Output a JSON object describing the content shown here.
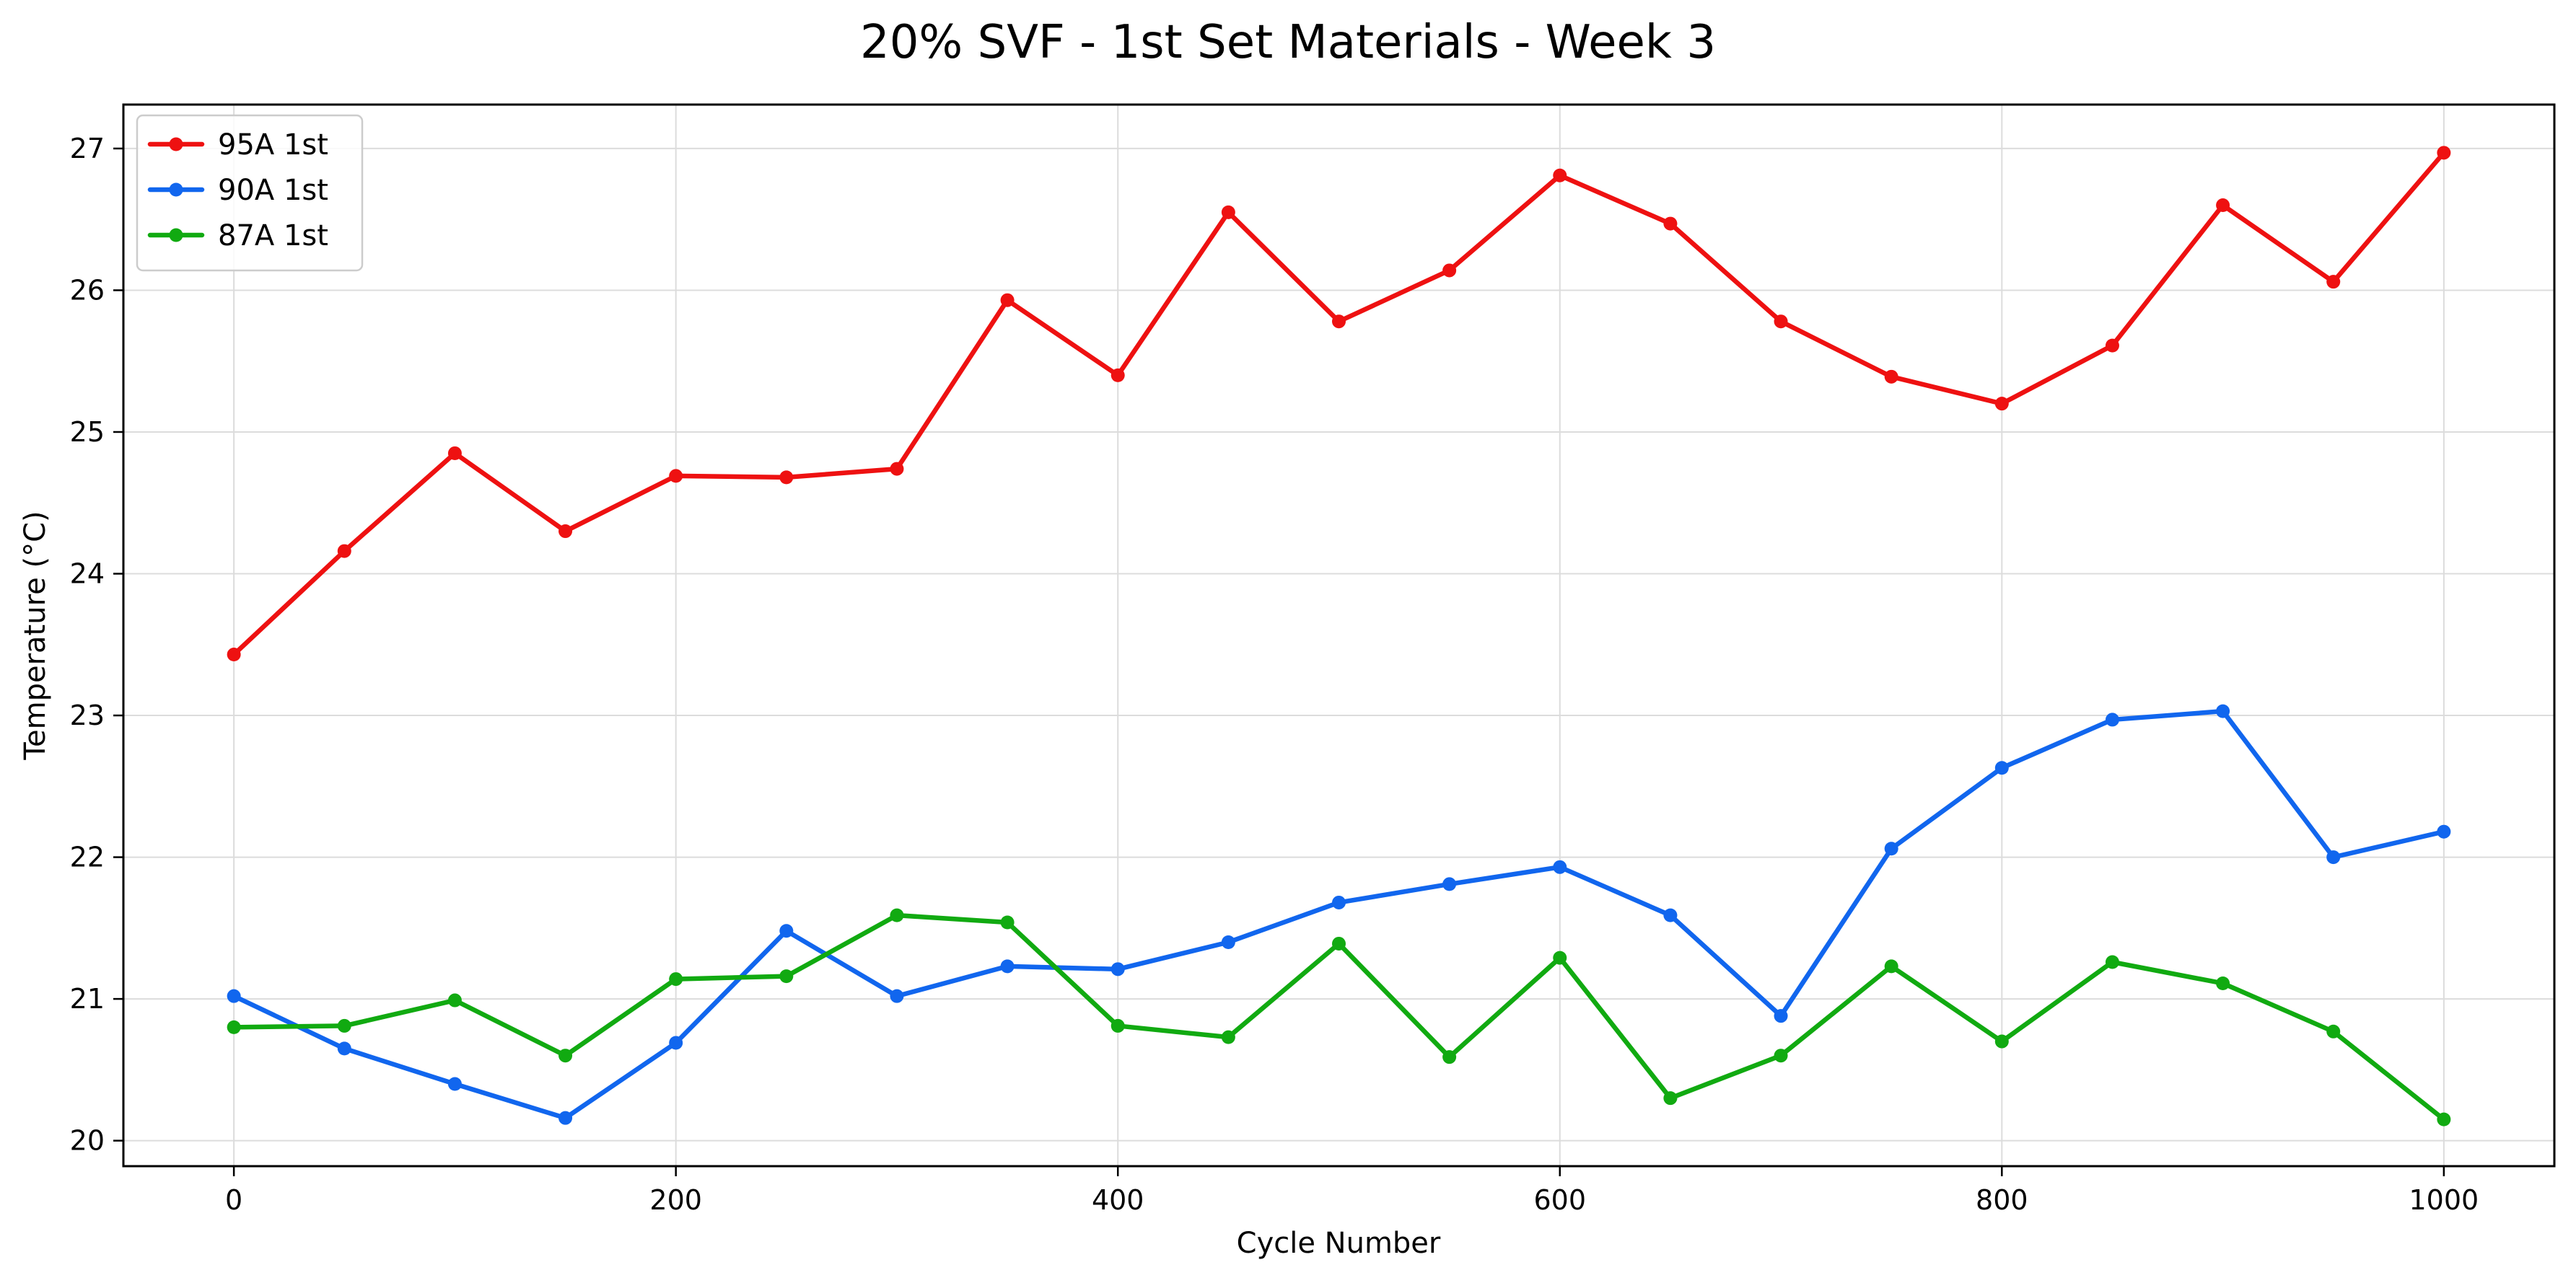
{
  "chart_data": {
    "type": "line",
    "title": "20% SVF - 1st Set Materials - Week 3",
    "xlabel": "Cycle Number",
    "ylabel": "Temperature (°C)",
    "x": [
      0,
      50,
      100,
      150,
      200,
      250,
      300,
      350,
      400,
      450,
      500,
      550,
      600,
      650,
      700,
      750,
      800,
      850,
      900,
      950,
      1000
    ],
    "xlim": [
      -50,
      1050
    ],
    "ylim": [
      19.82,
      27.31
    ],
    "xticks": [
      0,
      200,
      400,
      600,
      800,
      1000
    ],
    "yticks": [
      20,
      21,
      22,
      23,
      24,
      25,
      26,
      27
    ],
    "xtick_labels": [
      "0",
      "200",
      "400",
      "600",
      "800",
      "1000"
    ],
    "ytick_labels": [
      "20",
      "21",
      "22",
      "23",
      "24",
      "25",
      "26",
      "27"
    ],
    "grid": true,
    "legend_position": "top-left",
    "series": [
      {
        "name": "95A 1st",
        "color": "#ee1111",
        "values": [
          23.43,
          24.16,
          24.85,
          24.3,
          24.69,
          24.68,
          24.74,
          25.93,
          25.4,
          26.55,
          25.78,
          26.14,
          26.81,
          26.47,
          25.78,
          25.39,
          25.2,
          25.61,
          26.6,
          26.06,
          26.97
        ]
      },
      {
        "name": "90A 1st",
        "color": "#1166ee",
        "values": [
          21.02,
          20.65,
          20.4,
          20.16,
          20.69,
          21.48,
          21.02,
          21.23,
          21.21,
          21.4,
          21.68,
          21.81,
          21.93,
          21.59,
          20.88,
          22.06,
          22.63,
          22.97,
          23.03,
          22.0,
          22.18
        ]
      },
      {
        "name": "87A 1st",
        "color": "#11aa11",
        "values": [
          20.8,
          20.81,
          20.99,
          20.6,
          21.14,
          21.16,
          21.59,
          21.54,
          20.81,
          20.73,
          21.39,
          20.59,
          21.29,
          20.3,
          20.6,
          21.23,
          20.7,
          21.26,
          21.11,
          20.77,
          20.15
        ]
      }
    ]
  }
}
